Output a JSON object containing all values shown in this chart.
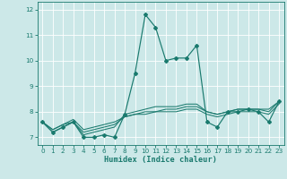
{
  "xlabel": "Humidex (Indice chaleur)",
  "bg_color": "#cce8e8",
  "line_color": "#1a7a6e",
  "xlim": [
    -0.5,
    23.5
  ],
  "ylim": [
    6.7,
    12.3
  ],
  "yticks": [
    7,
    8,
    9,
    10,
    11,
    12
  ],
  "xticks": [
    0,
    1,
    2,
    3,
    4,
    5,
    6,
    7,
    8,
    9,
    10,
    11,
    12,
    13,
    14,
    15,
    16,
    17,
    18,
    19,
    20,
    21,
    22,
    23
  ],
  "series": [
    [
      7.6,
      7.2,
      7.4,
      7.6,
      7.0,
      7.0,
      7.1,
      7.0,
      7.9,
      9.5,
      11.8,
      11.3,
      10.0,
      10.1,
      10.1,
      10.6,
      7.6,
      7.4,
      8.0,
      8.0,
      8.1,
      8.0,
      7.6,
      8.4
    ],
    [
      7.6,
      7.2,
      7.4,
      7.6,
      7.1,
      7.2,
      7.3,
      7.4,
      7.9,
      8.0,
      8.1,
      8.2,
      8.2,
      8.2,
      8.3,
      8.3,
      8.0,
      7.9,
      8.0,
      8.1,
      8.1,
      8.1,
      8.1,
      8.4
    ],
    [
      7.6,
      7.3,
      7.5,
      7.6,
      7.2,
      7.3,
      7.4,
      7.5,
      7.8,
      7.9,
      7.9,
      8.0,
      8.0,
      8.0,
      8.1,
      8.1,
      7.9,
      7.8,
      7.9,
      8.0,
      8.0,
      8.0,
      7.9,
      8.3
    ],
    [
      7.6,
      7.3,
      7.5,
      7.7,
      7.3,
      7.4,
      7.5,
      7.6,
      7.8,
      7.9,
      8.0,
      8.0,
      8.1,
      8.1,
      8.2,
      8.2,
      8.0,
      7.9,
      8.0,
      8.1,
      8.1,
      8.1,
      8.0,
      8.4
    ]
  ]
}
